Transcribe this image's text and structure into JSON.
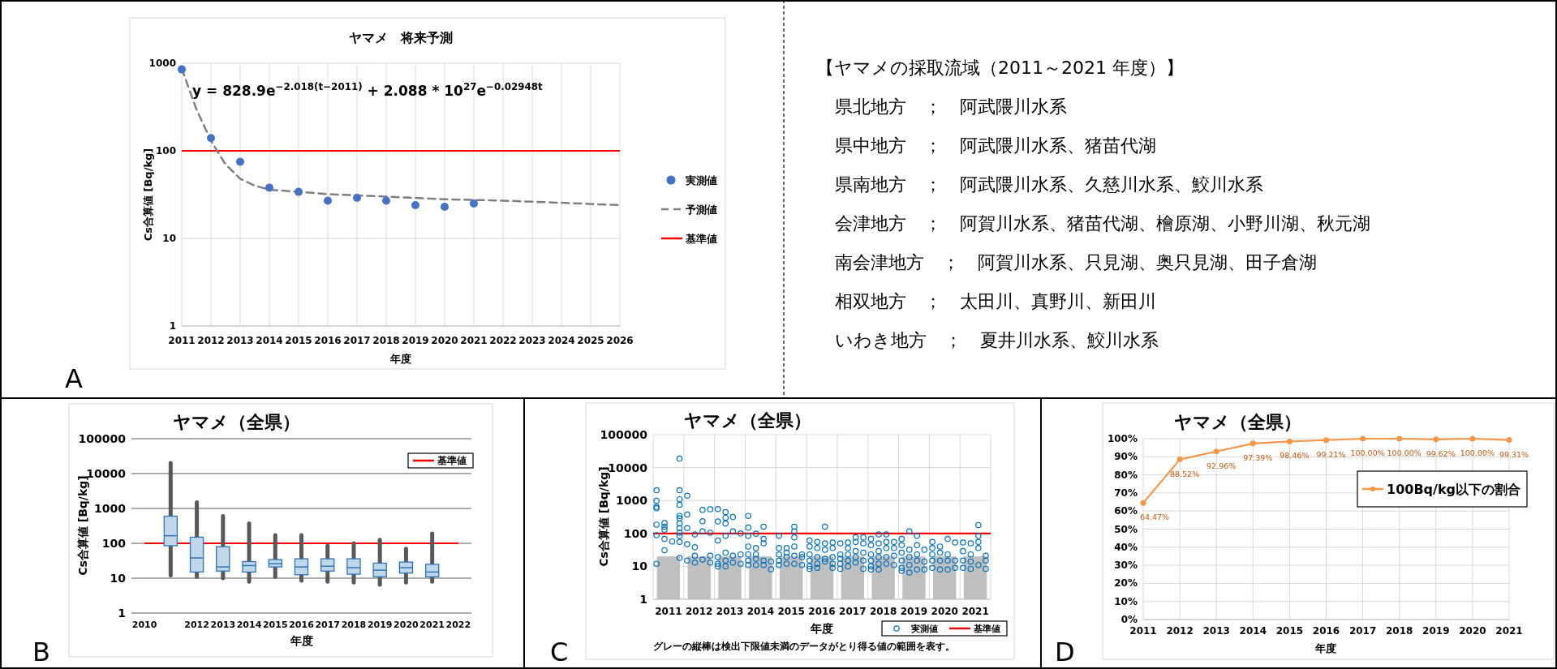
{
  "chart_data": [
    {
      "type": "scatter",
      "title": "ヤマメ　将来予測",
      "xlabel": "年度",
      "ylabel": "Cs合算値 [Bq/kg]",
      "log": "y",
      "xlim": [
        2011,
        2026
      ],
      "xticks": [
        2011,
        2012,
        2013,
        2014,
        2015,
        2016,
        2017,
        2018,
        2019,
        2020,
        2021,
        2022,
        2023,
        2024,
        2025,
        2026
      ],
      "ylim": [
        1,
        1000
      ],
      "yticks": [
        1,
        10,
        100,
        1000
      ],
      "grid": true,
      "legend": "right",
      "series": [
        {
          "name": "実測値",
          "type": "scatter",
          "color": "#4472c4",
          "marker": "circle",
          "x": [
            2011,
            2012,
            2013,
            2014,
            2015,
            2016,
            2017,
            2018,
            2019,
            2020,
            2021
          ],
          "values": [
            850,
            140,
            75,
            38,
            34,
            27,
            29,
            27,
            24,
            23,
            25
          ]
        },
        {
          "name": "予測値",
          "type": "line",
          "color": "#7f7f7f",
          "line_style": "dashed",
          "marker": "none",
          "x": [
            2011,
            2011.5,
            2012,
            2012.5,
            2013,
            2013.5,
            2014,
            2015,
            2016,
            2018,
            2020,
            2022,
            2024,
            2026
          ],
          "values": [
            870,
            300,
            130,
            70,
            48,
            40,
            36,
            34,
            32,
            30,
            28,
            27,
            25.5,
            24
          ]
        }
      ],
      "ref_lines": [
        {
          "axis": "y",
          "value": 100,
          "label": "基準値",
          "color": "#ff0000"
        }
      ],
      "annotations": [
        "y = 828.9e$^{−2.018(t−2011)}$ + 2.088 * 10$^{27}$e$^{−0.02948t}$",
        "A"
      ]
    },
    {
      "type": "other",
      "title": "【ヤマメの採取流域（2011～2021 年度）】",
      "annotations": [
        "県北地方　；　阿武隈川水系",
        "県中地方　；　阿武隈川水系、猪苗代湖",
        "県南地方　；　阿武隈川水系、久慈川水系、鮫川水系",
        "会津地方　；　阿賀川水系、猪苗代湖、檜原湖、小野川湖、秋元湖",
        "南会津地方　；　阿賀川水系、只見湖、奥只見湖、田子倉湖",
        "相双地方　；　太田川、真野川、新田川",
        "いわき地方　；　夏井川水系、鮫川水系"
      ]
    },
    {
      "type": "box",
      "title": "ヤマメ（全県）",
      "xlabel": "年度",
      "ylabel": "Cs合算値 [Bq/kg]",
      "categories": [
        "2010",
        null,
        "2012",
        "2013",
        "2014",
        "2015",
        "2016",
        "2017",
        "2018",
        "2019",
        "2020",
        "2021",
        "2022"
      ],
      "log": "y",
      "ylim": [
        1,
        100000
      ],
      "yticks": [
        1,
        10,
        100,
        1000,
        10000,
        100000
      ],
      "grid": "y",
      "legend": "top right",
      "series": [
        {
          "color": "#2e75b6",
          "boxes": [
            null,
            {
              "low": 12,
              "q1": 85,
              "median": 165,
              "q3": 600,
              "high": 20000
            },
            {
              "low": 11,
              "q1": 15,
              "median": 38,
              "q3": 150,
              "high": 1500
            },
            {
              "low": 10,
              "q1": 16,
              "median": 21,
              "q3": 80,
              "high": 600
            },
            {
              "low": 8,
              "q1": 15,
              "median": 23,
              "q3": 30,
              "high": 370
            },
            {
              "low": 11,
              "q1": 21,
              "median": 26,
              "q3": 34,
              "high": 170
            },
            {
              "low": 8.5,
              "q1": 12.5,
              "median": 21,
              "q3": 36,
              "high": 170
            },
            {
              "low": 8,
              "q1": 16,
              "median": 22,
              "q3": 36,
              "high": 85
            },
            {
              "low": 7.5,
              "q1": 13,
              "median": 20,
              "q3": 36,
              "high": 100
            },
            {
              "low": 6.5,
              "q1": 11,
              "median": 17,
              "q3": 27,
              "high": 125
            },
            {
              "low": 7.5,
              "q1": 14,
              "median": 20,
              "q3": 29,
              "high": 70
            },
            {
              "low": 8,
              "q1": 11,
              "median": 15,
              "q3": 25,
              "high": 190
            },
            null
          ]
        }
      ],
      "ref_lines": [
        {
          "axis": "y",
          "value": 100,
          "label": "基準値",
          "color": "#ff0000"
        }
      ],
      "annotations": [
        "B"
      ]
    },
    {
      "type": "scatter",
      "title": "ヤマメ（全県）",
      "xlabel": "年度",
      "ylabel": "Cs合算値 [Bq/kg]",
      "log": "y",
      "xlim": [
        2010.5,
        2021.5
      ],
      "xticks": [
        {
          "value": 2010.5,
          "label": null
        },
        2011,
        {
          "value": 2011.5,
          "label": null
        },
        2012,
        {
          "value": 2012.5,
          "label": null
        },
        2013,
        {
          "value": 2013.5,
          "label": null
        },
        2014,
        {
          "value": 2014.5,
          "label": null
        },
        2015,
        {
          "value": 2015.5,
          "label": null
        },
        2016,
        {
          "value": 2016.5,
          "label": null
        },
        2017,
        {
          "value": 2017.5,
          "label": null
        },
        2018,
        {
          "value": 2018.5,
          "label": null
        },
        2019,
        {
          "value": 2019.5,
          "label": null
        },
        2020,
        {
          "value": 2020.5,
          "label": null
        },
        2021,
        {
          "value": 2021.5,
          "label": null
        }
      ],
      "ylim": [
        1,
        100000
      ],
      "yticks": [
        1,
        10,
        100,
        1000,
        10000,
        100000
      ],
      "grid": true,
      "legend": "bottom right",
      "series": [
        {
          "type": "bar",
          "color": "#bfbfbf",
          "x": [
            2011,
            2012,
            2013,
            2014,
            2015,
            2016,
            2017,
            2018,
            2019,
            2020,
            2021
          ],
          "values": [
            20,
            20,
            20,
            20,
            20,
            20,
            20,
            20,
            20,
            20,
            20
          ]
        },
        {
          "name": "実測値",
          "type": "scatter",
          "color": "#0070c0",
          "marker": "circle",
          "x": [
            2010.61,
            2010.61,
            2010.61,
            2010.61,
            2010.61,
            2010.61,
            2010.61,
            2010.87,
            2010.87,
            2010.87,
            2010.87,
            2010.87,
            2011.12,
            2011.36,
            2011.36,
            2011.36,
            2011.36,
            2011.36,
            2011.36,
            2011.36,
            2011.36,
            2011.36,
            2011.36,
            2011.36,
            2011.36,
            2011.61,
            2011.61,
            2011.61,
            2011.61,
            2011.61,
            2011.86,
            2011.86,
            2011.86,
            2011.86,
            2012.11,
            2012.11,
            2012.11,
            2012.11,
            2012.36,
            2012.36,
            2012.36,
            2012.36,
            2012.61,
            2012.61,
            2012.61,
            2012.61,
            2012.61,
            2012.61,
            2012.86,
            2012.86,
            2012.86,
            2012.86,
            2012.86,
            2012.86,
            2012.86,
            2013.1,
            2013.1,
            2013.1,
            2013.1,
            2013.35,
            2013.35,
            2013.35,
            2013.6,
            2013.6,
            2013.6,
            2013.6,
            2013.6,
            2013.6,
            2013.6,
            2013.85,
            2013.85,
            2013.85,
            2013.85,
            2013.85,
            2014.1,
            2014.1,
            2014.1,
            2014.1,
            2014.1,
            2014.34,
            2014.34,
            2014.6,
            2014.6,
            2014.6,
            2014.6,
            2014.6,
            2014.85,
            2014.85,
            2014.85,
            2014.85,
            2015.1,
            2015.1,
            2015.1,
            2015.1,
            2015.1,
            2015.1,
            2015.35,
            2015.35,
            2015.35,
            2015.6,
            2015.6,
            2015.6,
            2015.6,
            2015.6,
            2015.6,
            2015.85,
            2015.85,
            2015.85,
            2015.85,
            2015.85,
            2016.1,
            2016.1,
            2016.1,
            2016.1,
            2016.1,
            2016.35,
            2016.35,
            2016.35,
            2016.35,
            2016.35,
            2016.6,
            2016.6,
            2016.6,
            2016.6,
            2016.6,
            2016.85,
            2016.85,
            2016.85,
            2016.85,
            2016.85,
            2017.1,
            2017.1,
            2017.1,
            2017.1,
            2017.1,
            2017.35,
            2017.35,
            2017.35,
            2017.35,
            2017.35,
            2017.6,
            2017.6,
            2017.6,
            2017.6,
            2017.6,
            2017.6,
            2017.85,
            2017.85,
            2017.85,
            2017.85,
            2017.85,
            2017.85,
            2018.1,
            2018.1,
            2018.1,
            2018.1,
            2018.1,
            2018.35,
            2018.35,
            2018.35,
            2018.35,
            2018.6,
            2018.6,
            2018.6,
            2018.6,
            2018.6,
            2018.6,
            2018.85,
            2018.85,
            2018.85,
            2018.85,
            2018.85,
            2019.1,
            2019.1,
            2019.1,
            2019.1,
            2019.1,
            2019.34,
            2019.34,
            2019.34,
            2019.6,
            2019.6,
            2019.6,
            2019.6,
            2019.6,
            2019.85,
            2019.85,
            2019.85,
            2019.85,
            2020.1,
            2020.1,
            2020.1,
            2020.1,
            2020.34,
            2020.34,
            2020.34,
            2020.6,
            2020.6,
            2020.6,
            2020.6,
            2020.85,
            2020.85,
            2020.85,
            2020.85,
            2021.1,
            2021.1,
            2021.1,
            2021.1,
            2021.1,
            2021.34,
            2021.34,
            2021.34
          ],
          "values": [
            2050,
            980,
            640,
            580,
            185,
            88,
            12,
            205,
            160,
            130,
            68,
            31,
            57,
            18700,
            2050,
            1090,
            740,
            340,
            290,
            200,
            145,
            105,
            84,
            55,
            18,
            1400,
            375,
            145,
            47,
            15,
            93,
            38,
            21,
            13,
            520,
            235,
            115,
            16,
            540,
            105,
            21,
            13,
            550,
            230,
            61,
            19,
            12,
            10,
            445,
            300,
            200,
            84,
            26,
            15,
            10,
            315,
            115,
            21,
            13,
            100,
            23,
            12,
            340,
            150,
            84,
            40,
            23,
            15,
            11,
            98,
            36,
            23,
            17,
            11,
            160,
            68,
            50,
            15,
            11,
            14,
            8.1,
            84,
            36,
            23,
            15,
            11,
            36,
            26,
            19,
            12,
            160,
            115,
            76,
            40,
            21,
            12,
            23,
            19,
            11,
            61,
            40,
            23,
            15,
            10,
            8.4,
            55,
            36,
            19,
            12,
            9,
            160,
            50,
            32,
            17,
            14,
            53,
            36,
            19,
            12,
            9,
            50,
            23,
            17,
            12,
            8.4,
            53,
            36,
            23,
            15,
            10,
            76,
            55,
            29,
            19,
            13,
            76,
            50,
            26,
            15,
            8.4,
            68,
            44,
            23,
            15,
            10,
            8,
            93,
            50,
            29,
            19,
            12,
            8,
            93,
            55,
            36,
            19,
            12,
            55,
            36,
            21,
            11,
            68,
            44,
            26,
            15,
            9,
            7.3,
            115,
            32,
            19,
            11,
            6.5,
            84,
            44,
            23,
            15,
            8,
            32,
            14,
            8,
            55,
            36,
            23,
            15,
            9,
            40,
            26,
            15,
            8,
            68,
            23,
            15,
            8,
            53,
            15,
            9,
            53,
            29,
            15,
            9,
            50,
            23,
            14,
            8.4,
            180,
            84,
            55,
            36,
            11,
            21,
            15,
            8.4
          ]
        }
      ],
      "ref_lines": [
        {
          "axis": "y",
          "value": 100,
          "label": "基準値",
          "color": "#ff0000"
        }
      ],
      "annotations": [
        "グレーの縦棒は検出下限値未満のデータがとり得る値の範囲を表す。",
        "C"
      ]
    },
    {
      "type": "line",
      "title": "ヤマメ（全県）",
      "xlabel": "年度",
      "x": [
        2011,
        2012,
        2013,
        2014,
        2015,
        2016,
        2017,
        2018,
        2019,
        2020,
        2021
      ],
      "xlim": [
        2011,
        2021
      ],
      "xticks": [
        2011,
        2012,
        2013,
        2014,
        2015,
        2016,
        2017,
        2018,
        2019,
        2020,
        2021
      ],
      "ylim": [
        0,
        100
      ],
      "yticks": [
        {
          "value": 0,
          "label": "0%"
        },
        {
          "value": 10,
          "label": "10%"
        },
        {
          "value": 20,
          "label": "20%"
        },
        {
          "value": 30,
          "label": "30%"
        },
        {
          "value": 40,
          "label": "40%"
        },
        {
          "value": 50,
          "label": "50%"
        },
        {
          "value": 60,
          "label": "60%"
        },
        {
          "value": 70,
          "label": "70%"
        },
        {
          "value": 80,
          "label": "80%"
        },
        {
          "value": 90,
          "label": "90%"
        },
        {
          "value": 100,
          "label": "100%"
        }
      ],
      "grid": true,
      "legend": "right",
      "marker": "circle",
      "series": [
        {
          "name": "100Bq/kg以下の割合",
          "color": "#f79646",
          "values": [
            64.47,
            88.52,
            92.96,
            97.39,
            98.46,
            99.21,
            100.0,
            100.0,
            99.62,
            100.0,
            99.31
          ],
          "value_labels": [
            "64.47%",
            "88.52%",
            "92.96%",
            "97.39%",
            "98.46%",
            "99.21%",
            "100.00%",
            "100.00%",
            "99.62%",
            "100.00%",
            "99.31%"
          ]
        }
      ],
      "annotations": [
        "D"
      ]
    }
  ]
}
